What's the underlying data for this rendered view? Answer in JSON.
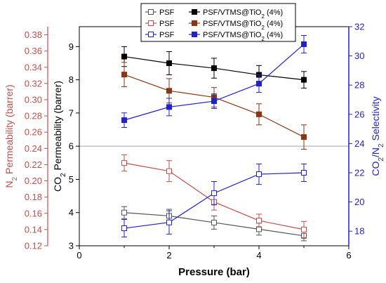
{
  "colors": {
    "co2_axis": "#000000",
    "n2_axis": "#c0504d",
    "sel_axis": "#1f23c8",
    "divider": "#a6a6a6"
  },
  "chart_data": {
    "type": "line",
    "xlabel": "Pressure (bar)",
    "x_ticks": [
      "0",
      "2",
      "4",
      "6"
    ],
    "xlim": [
      0,
      6
    ],
    "axes": {
      "co2": {
        "label_parts": [
          "CO",
          "2",
          " Permeability (barrer)"
        ],
        "ylim": [
          3,
          9.6
        ],
        "ticks": [
          "3",
          "4",
          "5",
          "6",
          "7",
          "8",
          "9"
        ]
      },
      "n2": {
        "label_parts": [
          "N",
          "2",
          " Permeability (barrer)"
        ],
        "ylim": [
          0.12,
          0.39
        ],
        "ticks": [
          "0.12",
          "0.14",
          "0.16",
          "0.18",
          "0.20",
          "0.22",
          "0.24",
          "0.26",
          "0.28",
          "0.30",
          "0.32",
          "0.34",
          "0.36",
          "0.38"
        ]
      },
      "sel": {
        "label_parts": [
          "CO",
          "2",
          "/N",
          "2",
          " Selectivity"
        ],
        "ylim": [
          17,
          32
        ],
        "ticks": [
          "18",
          "20",
          "22",
          "24",
          "26",
          "28",
          "30",
          "32"
        ]
      }
    },
    "divider_y_co2": 6,
    "legend": {
      "row1": [
        {
          "parts": [
            "PSF"
          ],
          "series": "co2_psf"
        },
        {
          "parts": [
            "PSF/VTMS@TiO",
            "2",
            " (4%)"
          ],
          "series": "co2_mod"
        }
      ],
      "row2": [
        {
          "parts": [
            "PSF"
          ],
          "series": "n2_psf"
        },
        {
          "parts": [
            "PSF/VTMS@TiO",
            "2",
            " (4%)"
          ],
          "series": "n2_mod"
        }
      ],
      "row3": [
        {
          "parts": [
            "PSF"
          ],
          "series": "sel_psf"
        },
        {
          "parts": [
            "PSF/VTMS@TiO",
            "2",
            " (4%)"
          ],
          "series": "sel_mod"
        }
      ]
    },
    "series": [
      {
        "id": "co2_psf",
        "axis": "co2",
        "color": "#555555",
        "marker": "open",
        "x": [
          1,
          2,
          3,
          4,
          5
        ],
        "y": [
          4.0,
          3.9,
          3.7,
          3.5,
          3.3
        ],
        "err": [
          0.18,
          0.2,
          0.2,
          0.18,
          0.15
        ]
      },
      {
        "id": "co2_mod",
        "axis": "co2",
        "color": "#000000",
        "marker": "filled",
        "x": [
          1,
          2,
          3,
          4,
          5
        ],
        "y": [
          8.7,
          8.5,
          8.35,
          8.15,
          8.0
        ],
        "err": [
          0.3,
          0.35,
          0.3,
          0.28,
          0.25
        ]
      },
      {
        "id": "n2_psf",
        "axis": "n2",
        "color": "#c0504d",
        "marker": "open",
        "x": [
          1,
          2,
          3,
          4,
          5
        ],
        "y": [
          0.222,
          0.212,
          0.174,
          0.151,
          0.14
        ],
        "err": [
          0.01,
          0.013,
          0.01,
          0.008,
          0.01
        ]
      },
      {
        "id": "n2_mod",
        "axis": "n2",
        "color": "#8b3512",
        "marker": "filled",
        "x": [
          1,
          2,
          3,
          4,
          5
        ],
        "y": [
          0.331,
          0.311,
          0.303,
          0.282,
          0.254
        ],
        "err": [
          0.015,
          0.015,
          0.012,
          0.013,
          0.015
        ]
      },
      {
        "id": "sel_psf",
        "axis": "sel",
        "color": "#1f23c8",
        "marker": "open",
        "x": [
          1,
          2,
          3,
          4,
          5
        ],
        "y": [
          18.2,
          18.6,
          20.6,
          21.9,
          22.0
        ],
        "err": [
          0.6,
          0.8,
          0.8,
          0.7,
          0.6
        ]
      },
      {
        "id": "sel_mod",
        "axis": "sel",
        "color": "#1f23c8",
        "marker": "filled",
        "x": [
          1,
          2,
          3,
          4,
          5
        ],
        "y": [
          25.6,
          26.5,
          26.9,
          28.1,
          30.8
        ],
        "err": [
          0.5,
          0.6,
          0.5,
          0.6,
          0.6
        ]
      }
    ]
  }
}
